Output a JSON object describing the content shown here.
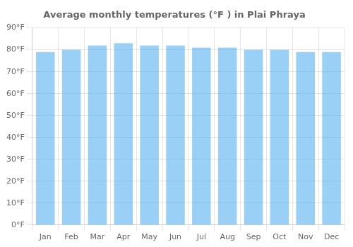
{
  "chart_data": {
    "type": "bar",
    "title": "Average monthly temperatures (°F ) in Plai Phraya",
    "categories": [
      "Jan",
      "Feb",
      "Mar",
      "Apr",
      "May",
      "Jun",
      "Jul",
      "Aug",
      "Sep",
      "Oct",
      "Nov",
      "Dec"
    ],
    "values": [
      79,
      80,
      82,
      83,
      82,
      82,
      81,
      81,
      80,
      80,
      79,
      79
    ],
    "ylim": [
      0,
      90
    ],
    "yticks": [
      {
        "value": 0,
        "label": "0°F"
      },
      {
        "value": 10,
        "label": "10°F"
      },
      {
        "value": 20,
        "label": "20°F"
      },
      {
        "value": 30,
        "label": "30°F"
      },
      {
        "value": 40,
        "label": "40°F"
      },
      {
        "value": 50,
        "label": "50°F"
      },
      {
        "value": 60,
        "label": "60°F"
      },
      {
        "value": 70,
        "label": "70°F"
      },
      {
        "value": 80,
        "label": "80°F"
      },
      {
        "value": 90,
        "label": "90°F"
      }
    ],
    "grid": true
  }
}
